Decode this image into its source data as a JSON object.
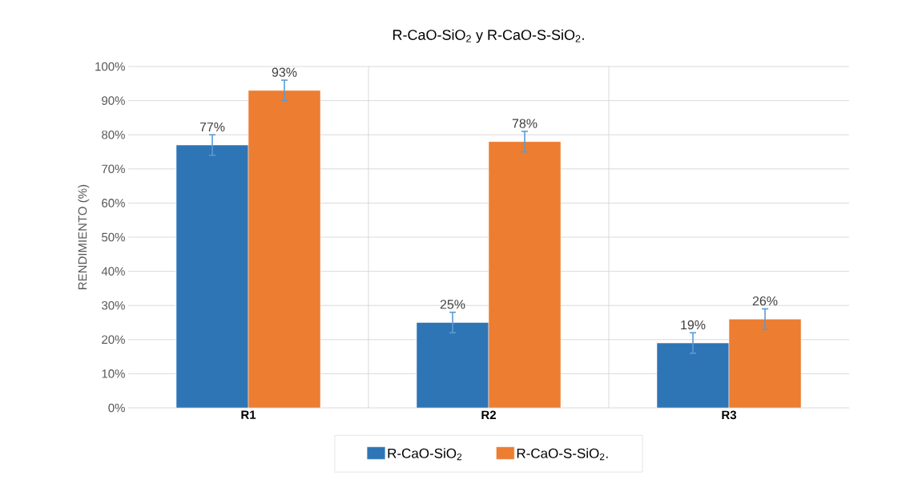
{
  "chart_data": {
    "type": "bar",
    "title": "R-CaO-SiO$_{2}$ y  R-CaO-S-SiO$_{2}$.",
    "ylabel": "RENDIMIENTO (%)",
    "categories": [
      "R1",
      "R2",
      "R3"
    ],
    "series": [
      {
        "name": "R-CaO-SiO$_{2}$",
        "color": "#2e75b6",
        "values": [
          77,
          25,
          19
        ],
        "errors": [
          3,
          3,
          3
        ],
        "value_labels": [
          "77%",
          "25%",
          "19%"
        ]
      },
      {
        "name": "R-CaO-S-SiO$_{2}$.",
        "color": "#ed7d31",
        "values": [
          93,
          78,
          26
        ],
        "errors": [
          3,
          3,
          3
        ],
        "value_labels": [
          "93%",
          "78%",
          "26%"
        ]
      }
    ],
    "ylim": [
      0,
      100
    ],
    "yticks": [
      {
        "value": 0,
        "label": "0%"
      },
      {
        "value": 10,
        "label": "10%"
      },
      {
        "value": 20,
        "label": "20%"
      },
      {
        "value": 30,
        "label": "30%"
      },
      {
        "value": 40,
        "label": "40%"
      },
      {
        "value": 50,
        "label": "50%"
      },
      {
        "value": 60,
        "label": "60%"
      },
      {
        "value": 70,
        "label": "70%"
      },
      {
        "value": 80,
        "label": "80%"
      },
      {
        "value": 90,
        "label": "90%"
      },
      {
        "value": 100,
        "label": "100%"
      }
    ],
    "grid": true,
    "legend": "bottom"
  }
}
